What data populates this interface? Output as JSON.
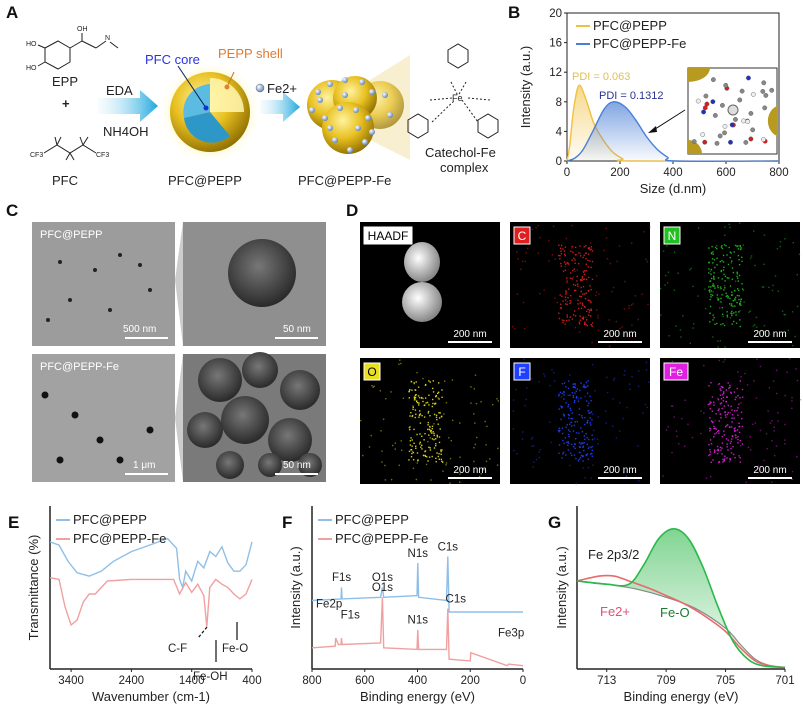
{
  "panels": {
    "A": {
      "label": "A",
      "epp": "EPP",
      "plus": "+",
      "pfc": "PFC",
      "eda": "EDA",
      "nh4oh": "NH4OH",
      "pfc_core": "PFC core",
      "pepp_shell": "PEPP shell",
      "fe_ion": "Fe2+",
      "product1": "PFC@PEPP",
      "product2": "PFC@PEPP-Fe",
      "complex_line1": "Catechol-Fe",
      "complex_line2": "complex",
      "atoms": {
        "oh": "OH",
        "ho": "HO",
        "n": "N",
        "h": "H",
        "f": "F",
        "cf3": "CF3",
        "fe": "Fe",
        "o": "O"
      }
    },
    "B": {
      "label": "B",
      "pdi1": "PDI = 0.063",
      "pdi2": "PDI = 0.1312"
    },
    "C": {
      "label": "C",
      "img1_title": "PFC@PEPP",
      "img1_scale": "500 nm",
      "img2_scale": "50 nm",
      "img3_title": "PFC@PEPP-Fe",
      "img3_scale": "1 μm",
      "img4_scale": "50 nm"
    },
    "D": {
      "label": "D",
      "maps": [
        {
          "tag": "HAADF",
          "scale": "200 nm",
          "color": "#ffffff"
        },
        {
          "tag": "C",
          "scale": "200 nm",
          "color": "#e02020"
        },
        {
          "tag": "N",
          "scale": "200 nm",
          "color": "#22c022"
        },
        {
          "tag": "O",
          "scale": "200 nm",
          "color": "#e8e020"
        },
        {
          "tag": "F",
          "scale": "200 nm",
          "color": "#2040ff"
        },
        {
          "tag": "Fe",
          "scale": "200 nm",
          "color": "#e020e0"
        }
      ]
    },
    "E": {
      "label": "E",
      "ann": {
        "cf": "C-F",
        "feoh": "Fe-OH",
        "feo": "Fe-O"
      }
    },
    "F": {
      "label": "F"
    },
    "G": {
      "label": "G",
      "title": "Fe 2p3/2",
      "ann": {
        "fe2": "Fe2+",
        "feo": "Fe-O"
      }
    }
  },
  "chart_data": [
    {
      "panel": "B",
      "type": "area",
      "xlabel": "Size (d.nm)",
      "ylabel": "Intensity (a.u.)",
      "xlim": [
        0,
        800
      ],
      "ylim": [
        0,
        20
      ],
      "xticks": [
        0,
        200,
        400,
        600,
        800
      ],
      "yticks": [
        0,
        4,
        8,
        12,
        16,
        20
      ],
      "legend": "top-left",
      "series": [
        {
          "name": "PFC@PEPP",
          "color": "#f0c040",
          "x": [
            0,
            10,
            25,
            45,
            70,
            100,
            130,
            170,
            210,
            240,
            800
          ],
          "y": [
            0,
            2,
            7,
            10.2,
            8.5,
            5.2,
            3.2,
            1.3,
            0.3,
            0,
            0
          ]
        },
        {
          "name": "PFC@PEPP-Fe",
          "color": "#4a7fd6",
          "x": [
            0,
            30,
            60,
            100,
            140,
            175,
            220,
            260,
            300,
            340,
            380,
            410,
            800
          ],
          "y": [
            0,
            0.4,
            1.5,
            4.2,
            7.0,
            8.0,
            7.3,
            5.5,
            3.3,
            1.6,
            0.5,
            0,
            0
          ]
        }
      ]
    },
    {
      "panel": "E",
      "type": "line",
      "xlabel": "Wavenumber (cm-1)",
      "ylabel": "Transmittance (%)",
      "xlim": [
        3750,
        400
      ],
      "ylim": [
        0,
        10
      ],
      "xticks": [
        3400,
        2400,
        1400,
        400
      ],
      "legend": "top-left",
      "series": [
        {
          "name": "PFC@PEPP",
          "color": "#8fbfe8",
          "x": [
            3750,
            3600,
            3450,
            3300,
            3100,
            2900,
            2700,
            2400,
            2100,
            1800,
            1650,
            1600,
            1550,
            1500,
            1400,
            1300,
            1200,
            1100,
            1000,
            900,
            800,
            700,
            600,
            500,
            400
          ],
          "y": [
            7.8,
            7.6,
            6.6,
            5.9,
            5.7,
            6.0,
            6.6,
            7.2,
            7.6,
            8.0,
            7.4,
            5.5,
            5.0,
            6.0,
            5.4,
            6.6,
            6.2,
            7.2,
            6.9,
            7.5,
            6.5,
            6.0,
            6.0,
            6.4,
            7.8
          ]
        },
        {
          "name": "PFC@PEPP-Fe",
          "color": "#f0a0a0",
          "x": [
            3750,
            3600,
            3500,
            3400,
            3300,
            3200,
            3100,
            3000,
            2800,
            2400,
            2000,
            1700,
            1600,
            1500,
            1400,
            1300,
            1200,
            1150,
            1100,
            1000,
            900,
            800,
            700,
            600,
            500,
            400
          ],
          "y": [
            5.6,
            5.5,
            3.8,
            2.7,
            3.0,
            4.1,
            4.6,
            4.6,
            5.4,
            5.5,
            5.5,
            5.5,
            4.6,
            5.3,
            4.7,
            5.2,
            4.5,
            2.6,
            5.0,
            5.5,
            5.2,
            5.0,
            4.6,
            4.3,
            4.6,
            5.5
          ]
        }
      ]
    },
    {
      "panel": "F",
      "type": "line",
      "xlabel": "Binding energy (eV)",
      "ylabel": "Intensity (a.u.)",
      "xlim": [
        800,
        0
      ],
      "ylim": [
        0,
        10
      ],
      "xticks": [
        800,
        600,
        400,
        200,
        0
      ],
      "legend": "top-left",
      "series": [
        {
          "name": "PFC@PEPP",
          "color": "#8fbfe8",
          "x": [
            800,
            690,
            688,
            686,
            540,
            533,
            528,
            402,
            399,
            396,
            290,
            285,
            280,
            0
          ],
          "y": [
            4.2,
            4.3,
            5.0,
            4.3,
            4.4,
            5.0,
            4.4,
            4.5,
            6.5,
            4.4,
            4.2,
            6.9,
            3.5,
            3.5
          ],
          "peaks": [
            "F1s",
            "O1s",
            "N1s",
            "C1s"
          ]
        },
        {
          "name": "PFC@PEPP-Fe",
          "color": "#f0a0a0",
          "x": [
            800,
            712,
            710,
            700,
            690,
            688,
            686,
            540,
            533,
            528,
            402,
            399,
            396,
            290,
            285,
            280,
            200,
            198,
            60,
            55,
            0
          ],
          "y": [
            1.3,
            1.4,
            1.9,
            1.5,
            1.5,
            1.9,
            1.5,
            1.6,
            4.4,
            1.3,
            1.2,
            2.4,
            1.2,
            1.2,
            3.7,
            0.6,
            0.5,
            1.0,
            0.2,
            0.3,
            0.2
          ],
          "peaks": [
            "Fe2p",
            "F1s",
            "O1s",
            "N1s",
            "C1s",
            "Fe3p"
          ]
        }
      ]
    },
    {
      "panel": "G",
      "type": "area",
      "xlabel": "Binding energy (eV)",
      "ylabel": "Intensity (a.u.)",
      "xlim": [
        715,
        701
      ],
      "ylim": [
        0,
        10
      ],
      "xticks": [
        713,
        709,
        705,
        701
      ],
      "series": [
        {
          "name": "Fe-O",
          "color": "#2db84a",
          "x": [
            715,
            713,
            711.5,
            710.5,
            709.5,
            708.5,
            707.5,
            706.5,
            705.5,
            704.5,
            703.5,
            702.5,
            701
          ],
          "y": [
            5.4,
            5.2,
            5.2,
            6.4,
            8.0,
            8.6,
            8.0,
            6.2,
            3.8,
            1.7,
            0.6,
            0.2,
            0.1
          ]
        },
        {
          "name": "Fe2+",
          "color": "#e86a6a",
          "x": [
            715,
            713.5,
            712.5,
            711.5,
            710,
            709,
            708,
            707,
            706,
            705,
            704,
            703,
            702,
            701
          ],
          "y": [
            5.4,
            5.7,
            5.7,
            5.4,
            4.9,
            4.5,
            4.1,
            3.6,
            3.0,
            2.3,
            1.3,
            0.5,
            0.2,
            0.1
          ]
        },
        {
          "name": "background",
          "color": "#888888",
          "x": [
            715,
            713,
            711,
            709,
            707,
            705,
            704,
            703,
            702,
            701
          ],
          "y": [
            5.4,
            5.2,
            4.9,
            4.4,
            3.7,
            2.5,
            1.5,
            0.6,
            0.2,
            0.1
          ]
        }
      ]
    }
  ]
}
